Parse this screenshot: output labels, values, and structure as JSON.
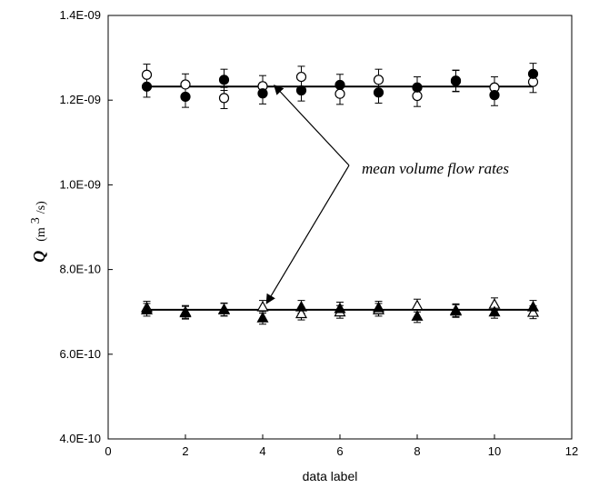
{
  "chart_data": {
    "type": "scatter",
    "title": "",
    "xlabel": "data label",
    "ylabel": {
      "symbol": "Q",
      "unit_open": "(m",
      "unit_sup": "3",
      "unit_close": "/s)"
    },
    "xlim": [
      0,
      12
    ],
    "ylim": [
      4e-10,
      1.4e-09
    ],
    "x_ticks": [
      0,
      2,
      4,
      6,
      8,
      10,
      12
    ],
    "x_tick_labels": [
      "0",
      "2",
      "4",
      "6",
      "8",
      "10",
      "12"
    ],
    "y_ticks": [
      4e-10,
      6e-10,
      8e-10,
      1e-09,
      1.2e-09,
      1.4e-09
    ],
    "y_tick_labels": [
      "4.0E-10",
      "6.0E-10",
      "8.0E-10",
      "1.0E-09",
      "1.2E-09",
      "1.4E-09"
    ],
    "grid": false,
    "x": [
      1,
      2,
      3,
      4,
      5,
      6,
      7,
      8,
      9,
      10,
      11
    ],
    "series": [
      {
        "marker": "circle-open",
        "values": [
          1.26e-09,
          1.237e-09,
          1.205e-09,
          1.233e-09,
          1.255e-09,
          1.215e-09,
          1.248e-09,
          1.21e-09,
          1.245e-09,
          1.23e-09,
          1.243e-09
        ],
        "error": 2.5e-11
      },
      {
        "marker": "circle-filled",
        "values": [
          1.232e-09,
          1.208e-09,
          1.248e-09,
          1.216e-09,
          1.223e-09,
          1.236e-09,
          1.218e-09,
          1.23e-09,
          1.246e-09,
          1.212e-09,
          1.262e-09
        ],
        "error": 2.5e-11
      },
      {
        "marker": "triangle-open",
        "values": [
          7.1e-10,
          7e-10,
          7.05e-10,
          7.12e-10,
          6.96e-10,
          7e-10,
          7.05e-10,
          7.15e-10,
          7.02e-10,
          7.18e-10,
          6.99e-10
        ],
        "error": 1.5e-11
      },
      {
        "marker": "triangle-filled",
        "values": [
          7.05e-10,
          6.98e-10,
          7.06e-10,
          6.86e-10,
          7.12e-10,
          7.08e-10,
          7.1e-10,
          6.9e-10,
          7.04e-10,
          7e-10,
          7.12e-10
        ],
        "error": 1.5e-11
      }
    ],
    "mean_lines": [
      {
        "value": 1.232e-09,
        "x_range": [
          1,
          11
        ]
      },
      {
        "value": 7.05e-10,
        "x_range": [
          1,
          11
        ]
      }
    ],
    "annotation": {
      "text": "mean volume flow rates",
      "arrow_targets": [
        {
          "x": 4.3,
          "y": 1.235e-09
        },
        {
          "x": 4.1,
          "y": 7.2e-10
        }
      ]
    }
  }
}
